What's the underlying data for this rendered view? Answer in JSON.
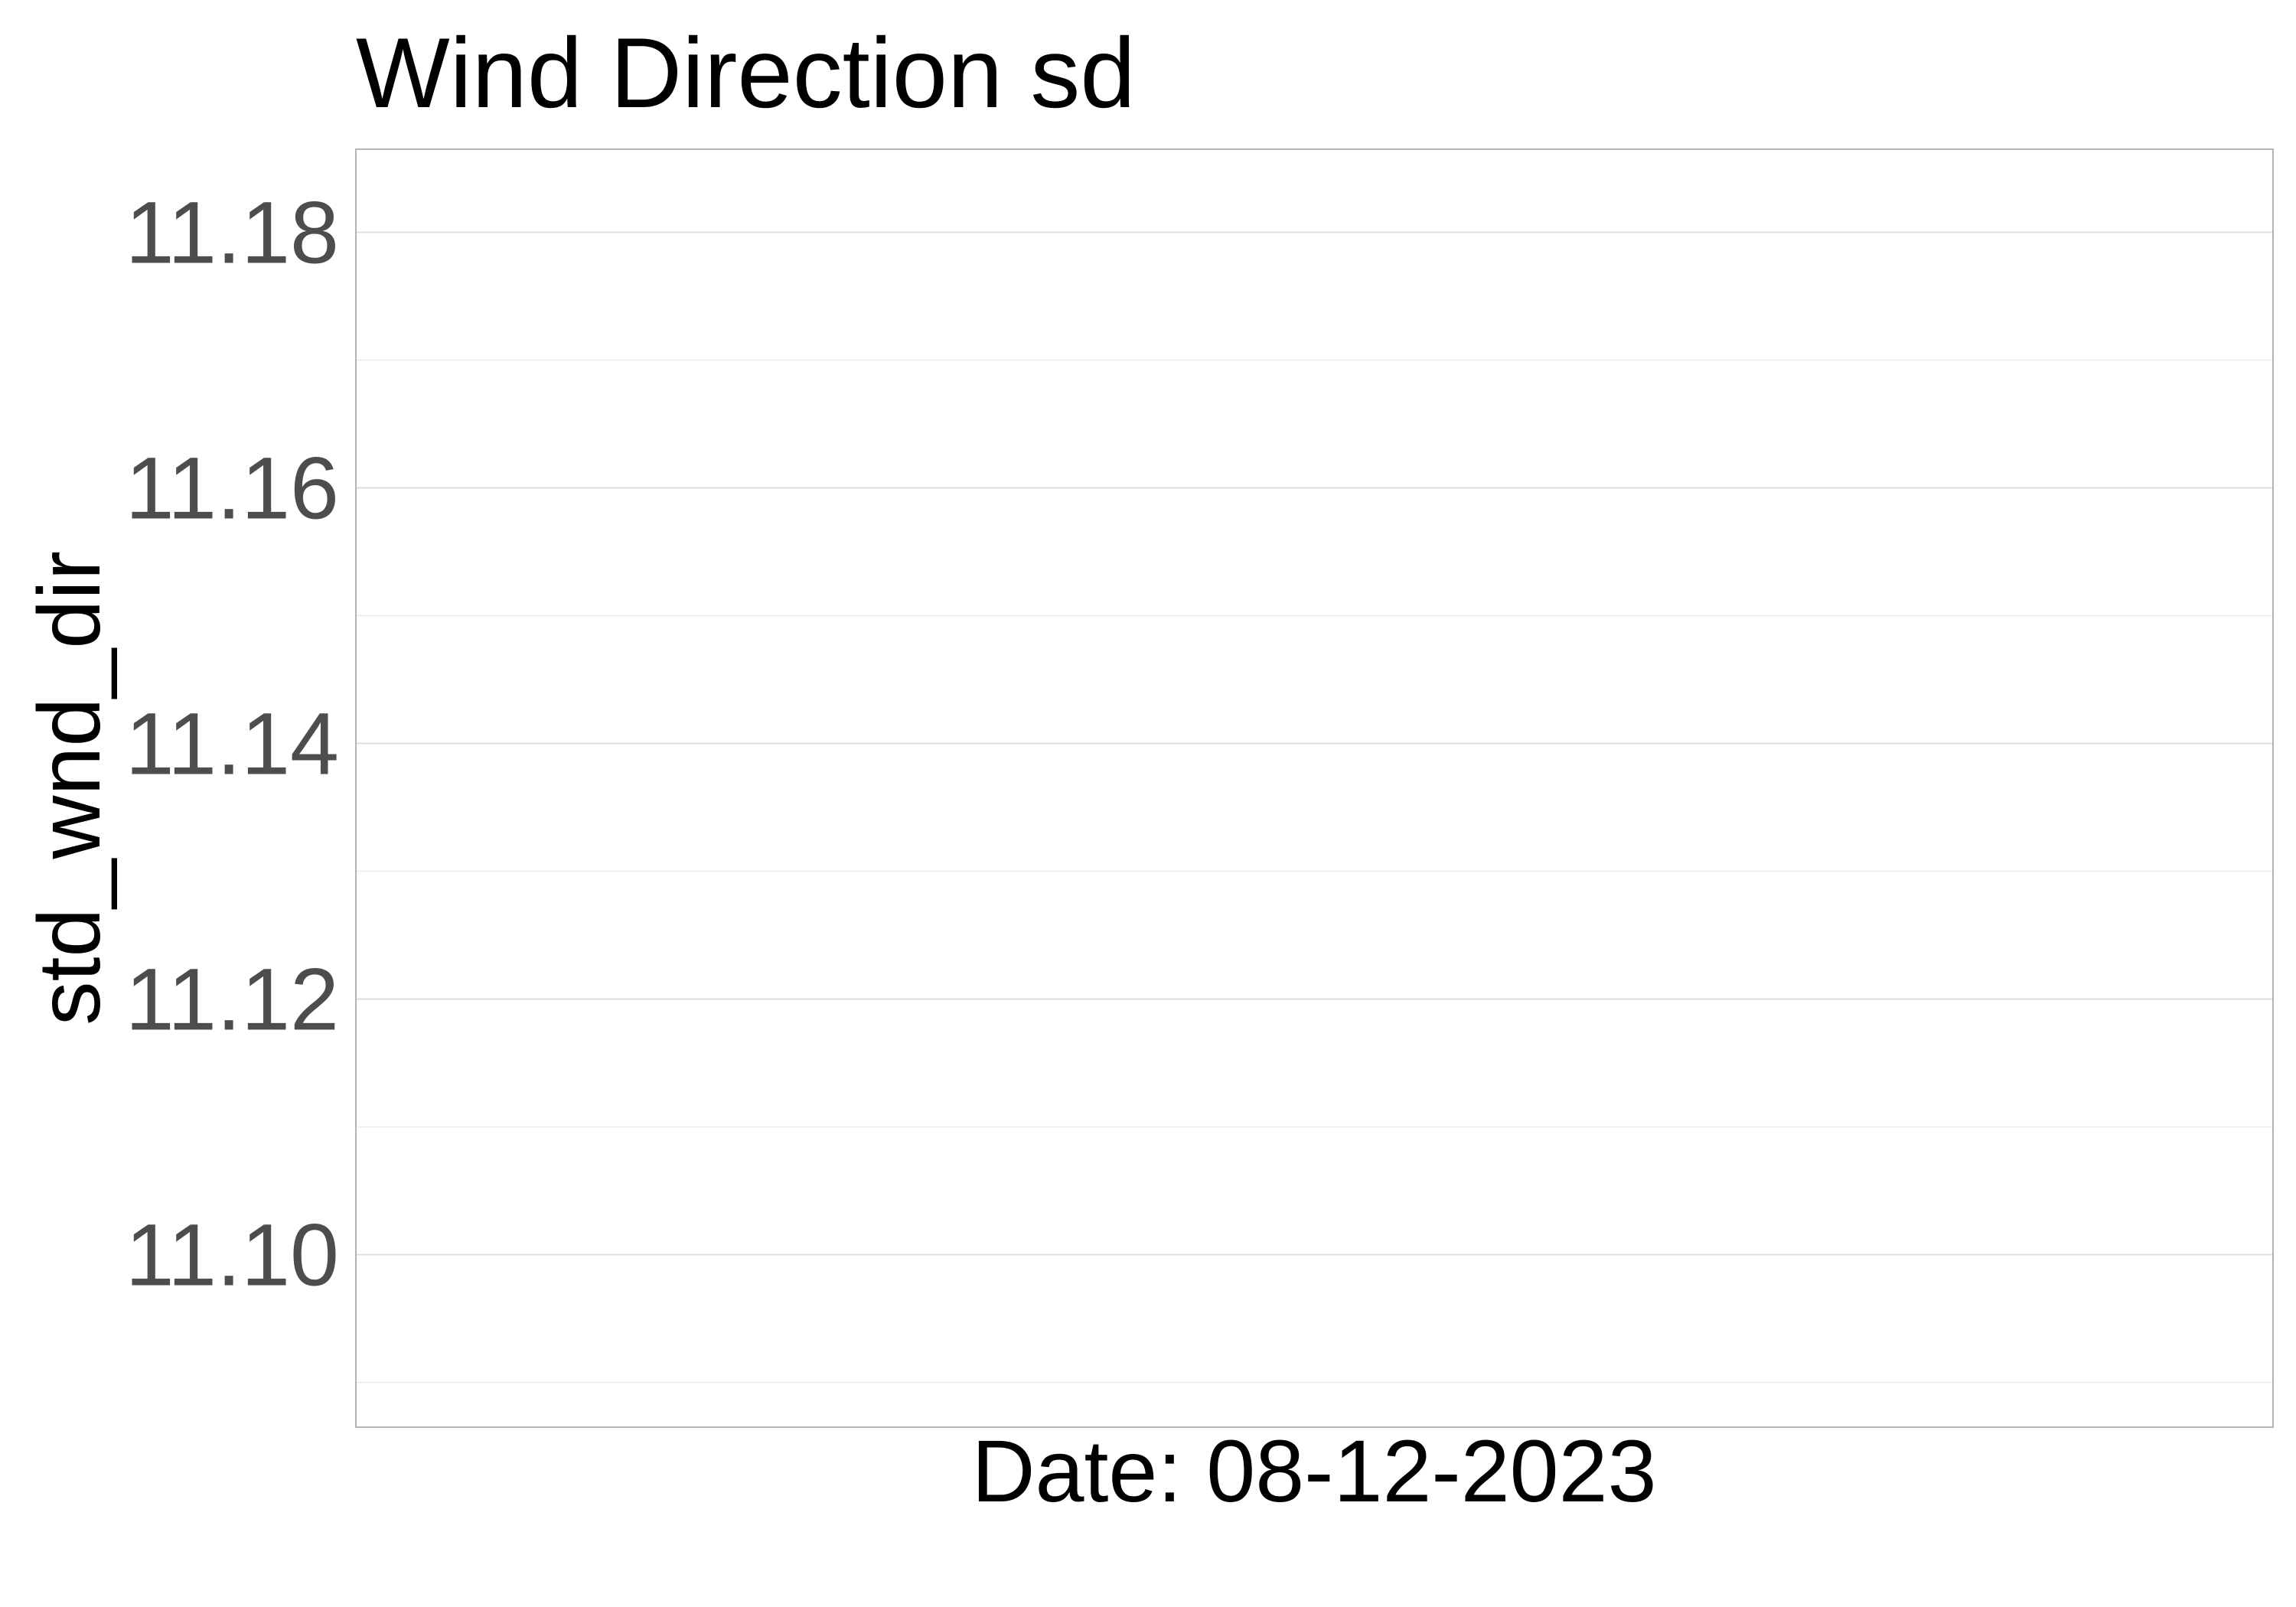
{
  "chart_data": {
    "type": "line",
    "title": "Wind Direction sd",
    "xlabel": "Date: 08-12-2023",
    "ylabel": "std_wnd_dir",
    "yticks": [
      11.1,
      11.12,
      11.14,
      11.16,
      11.18
    ],
    "ytick_labels": [
      "11.10",
      "11.12",
      "11.14",
      "11.16",
      "11.18"
    ],
    "ylim": [
      11.0865,
      11.1865
    ],
    "grid": true,
    "series": []
  }
}
